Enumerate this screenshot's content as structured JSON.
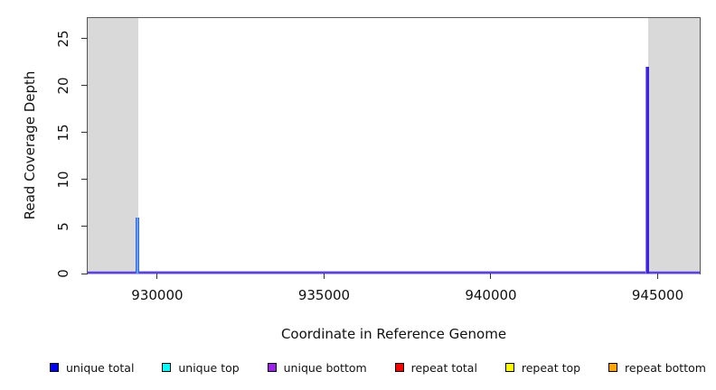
{
  "chart_data": {
    "type": "line",
    "title": "",
    "xlabel": "Coordinate in Reference Genome",
    "ylabel": "Read Coverage Depth",
    "xlim": [
      927915,
      946260
    ],
    "ylim": [
      0,
      27.2
    ],
    "x_ticks": [
      930000,
      935000,
      940000,
      945000
    ],
    "y_ticks": [
      0,
      5,
      10,
      15,
      20,
      25
    ],
    "grid": false,
    "legend_position": "bottom",
    "plot_background": "#ffffff",
    "shaded_region_color": "#D9D9D9",
    "shaded_regions": [
      {
        "x0": 927915,
        "x1": 929430
      },
      {
        "x0": 944715,
        "x1": 946260
      }
    ],
    "series": [
      {
        "name": "unique total",
        "color": "#0000F2"
      },
      {
        "name": "unique top",
        "color": "#00FFFF"
      },
      {
        "name": "unique bottom",
        "color": "#A020F0"
      },
      {
        "name": "repeat total",
        "color": "#FB0000"
      },
      {
        "name": "repeat top",
        "color": "#FFFF00"
      },
      {
        "name": "repeat bottom",
        "color": "#FFA500"
      }
    ],
    "baseline": {
      "y": 0,
      "render_colors": [
        "#b9aaf0",
        "#5646d2",
        "#b9aaf0"
      ]
    },
    "spikes": [
      {
        "x": 929400,
        "value": 6,
        "series": [
          "unique total",
          "unique top"
        ],
        "render_colors": [
          "#3b63e0",
          "#5ea4f0",
          "#3b63e0"
        ]
      },
      {
        "x": 944680,
        "value": 22,
        "series": [
          "unique total",
          "unique bottom"
        ],
        "render_colors": [
          "#8374ea",
          "#3c25da",
          "#3c25da"
        ]
      }
    ]
  }
}
